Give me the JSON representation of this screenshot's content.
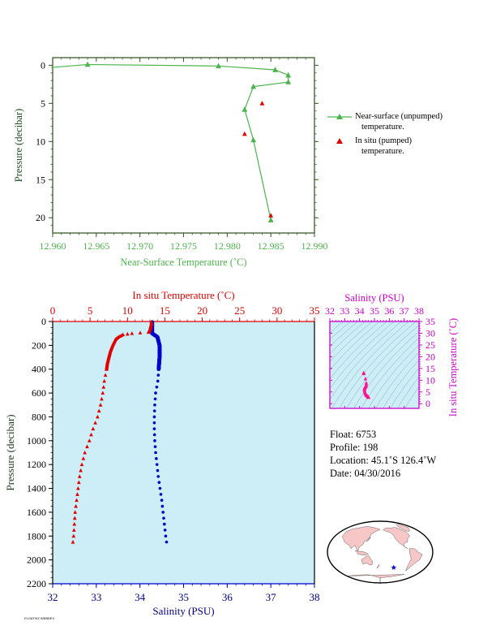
{
  "chart_data": [
    {
      "type": "line",
      "xlabel": "Near-Surface Temperature (˚C)",
      "ylabel": "Pressure (decibar)",
      "xlim": [
        12.96,
        12.99
      ],
      "ylim": [
        22,
        -1
      ],
      "x_ticks": [
        "12.960",
        "12.965",
        "12.970",
        "12.975",
        "12.980",
        "12.985",
        "12.990"
      ],
      "y_ticks": [
        "0",
        "5",
        "10",
        "15",
        "20"
      ],
      "series": [
        {
          "name": "Near-surface (unpumped) temperature.",
          "color": "#4db34d",
          "points": [
            [
              12.985,
              20.3
            ],
            [
              12.983,
              9.8
            ],
            [
              12.982,
              5.8
            ],
            [
              12.983,
              2.8
            ],
            [
              12.987,
              2.2
            ],
            [
              12.987,
              1.3
            ],
            [
              12.9855,
              0.6
            ],
            [
              12.979,
              0.1
            ],
            [
              12.964,
              -0.1
            ],
            [
              12.9598,
              0.3
            ]
          ]
        },
        {
          "name": "In situ (pumped) temperature.",
          "color": "#e00000",
          "points": [
            [
              12.985,
              19.7
            ],
            [
              12.982,
              9.0
            ],
            [
              12.984,
              5.0
            ]
          ]
        }
      ]
    },
    {
      "type": "scatter",
      "xlabel": "Salinity (PSU)",
      "x2label": "In situ Temperature (˚C)",
      "ylabel": "Pressure (decibar)",
      "xlim": [
        32,
        38
      ],
      "x2lim": [
        0,
        35
      ],
      "ylim": [
        2200,
        0
      ],
      "x_ticks": [
        "32",
        "33",
        "34",
        "35",
        "36",
        "37",
        "38"
      ],
      "x2_ticks": [
        "0",
        "5",
        "10",
        "15",
        "20",
        "25",
        "30",
        "35"
      ],
      "y_ticks": [
        "0",
        "200",
        "400",
        "600",
        "800",
        "1000",
        "1200",
        "1400",
        "1600",
        "1800",
        "2000",
        "2200"
      ],
      "temperature_profile": [
        [
          13.2,
          5
        ],
        [
          13.2,
          20
        ],
        [
          13.1,
          40
        ],
        [
          13.0,
          70
        ],
        [
          12.8,
          90
        ],
        [
          10.6,
          100
        ],
        [
          9.4,
          110
        ],
        [
          8.8,
          130
        ],
        [
          8.4,
          150
        ],
        [
          8.0,
          200
        ],
        [
          7.7,
          250
        ],
        [
          7.5,
          300
        ],
        [
          7.3,
          350
        ],
        [
          7.2,
          400
        ],
        [
          6.9,
          500
        ],
        [
          6.7,
          600
        ],
        [
          6.4,
          700
        ],
        [
          6.0,
          800
        ],
        [
          5.4,
          900
        ],
        [
          4.9,
          1000
        ],
        [
          4.3,
          1100
        ],
        [
          3.9,
          1200
        ],
        [
          3.6,
          1300
        ],
        [
          3.4,
          1400
        ],
        [
          3.2,
          1500
        ],
        [
          3.0,
          1600
        ],
        [
          2.9,
          1700
        ],
        [
          2.8,
          1800
        ],
        [
          2.7,
          1850
        ]
      ],
      "salinity_profile": [
        [
          34.28,
          5
        ],
        [
          34.28,
          60
        ],
        [
          34.28,
          100
        ],
        [
          34.4,
          130
        ],
        [
          34.45,
          200
        ],
        [
          34.45,
          300
        ],
        [
          34.43,
          400
        ],
        [
          34.41,
          500
        ],
        [
          34.36,
          600
        ],
        [
          34.34,
          700
        ],
        [
          34.33,
          800
        ],
        [
          34.33,
          900
        ],
        [
          34.34,
          1000
        ],
        [
          34.36,
          1100
        ],
        [
          34.39,
          1200
        ],
        [
          34.42,
          1300
        ],
        [
          34.46,
          1400
        ],
        [
          34.5,
          1500
        ],
        [
          34.53,
          1600
        ],
        [
          34.56,
          1700
        ],
        [
          34.59,
          1800
        ],
        [
          34.61,
          1850
        ]
      ],
      "temperature_color": "#e00000",
      "salinity_color": "#0000cc",
      "background": "#cdeef7"
    },
    {
      "type": "scatter",
      "xlabel": "Salinity (PSU)",
      "ylabel": "In situ Temperature (˚C)",
      "xlim": [
        32,
        38
      ],
      "ylim": [
        -2,
        35
      ],
      "x_ticks": [
        "32",
        "33",
        "34",
        "35",
        "36",
        "37",
        "38"
      ],
      "y_ticks": [
        "0",
        "5",
        "10",
        "15",
        "20",
        "25",
        "30",
        "35"
      ],
      "points": [
        [
          34.28,
          13.2
        ],
        [
          34.28,
          12.8
        ],
        [
          34.4,
          10.6
        ],
        [
          34.45,
          8.8
        ],
        [
          34.45,
          8.0
        ],
        [
          34.43,
          7.5
        ],
        [
          34.41,
          7.2
        ],
        [
          34.36,
          6.9
        ],
        [
          34.34,
          6.7
        ],
        [
          34.33,
          6.4
        ],
        [
          34.33,
          6.0
        ],
        [
          34.34,
          5.4
        ],
        [
          34.36,
          4.9
        ],
        [
          34.39,
          4.3
        ],
        [
          34.42,
          3.9
        ],
        [
          34.46,
          3.6
        ],
        [
          34.5,
          3.4
        ],
        [
          34.53,
          3.2
        ],
        [
          34.56,
          3.0
        ],
        [
          34.59,
          2.9
        ],
        [
          34.61,
          2.7
        ]
      ],
      "color": "#ff1493",
      "axis_color": "#cc00cc"
    }
  ],
  "info": {
    "float": "Float:  6753",
    "profile": "Profile:  198",
    "location": "Location:  45.1˚S  126.4˚W",
    "date": "Date:  04/30/2016"
  },
  "map": {
    "marker_lon": -126.4,
    "marker_lat": -45.1,
    "marker_color": "#0000cc",
    "land_color": "#f7c6c6",
    "ocean_color": "#ffffff"
  },
  "legend": {
    "item1_line1": "Near-surface (unpumped)",
    "item1_line2": "temperature.",
    "item2_line1": "In situ (pumped)",
    "item2_line2": "temperature."
  },
  "credit": "FLOATVIZ WEBDEV"
}
